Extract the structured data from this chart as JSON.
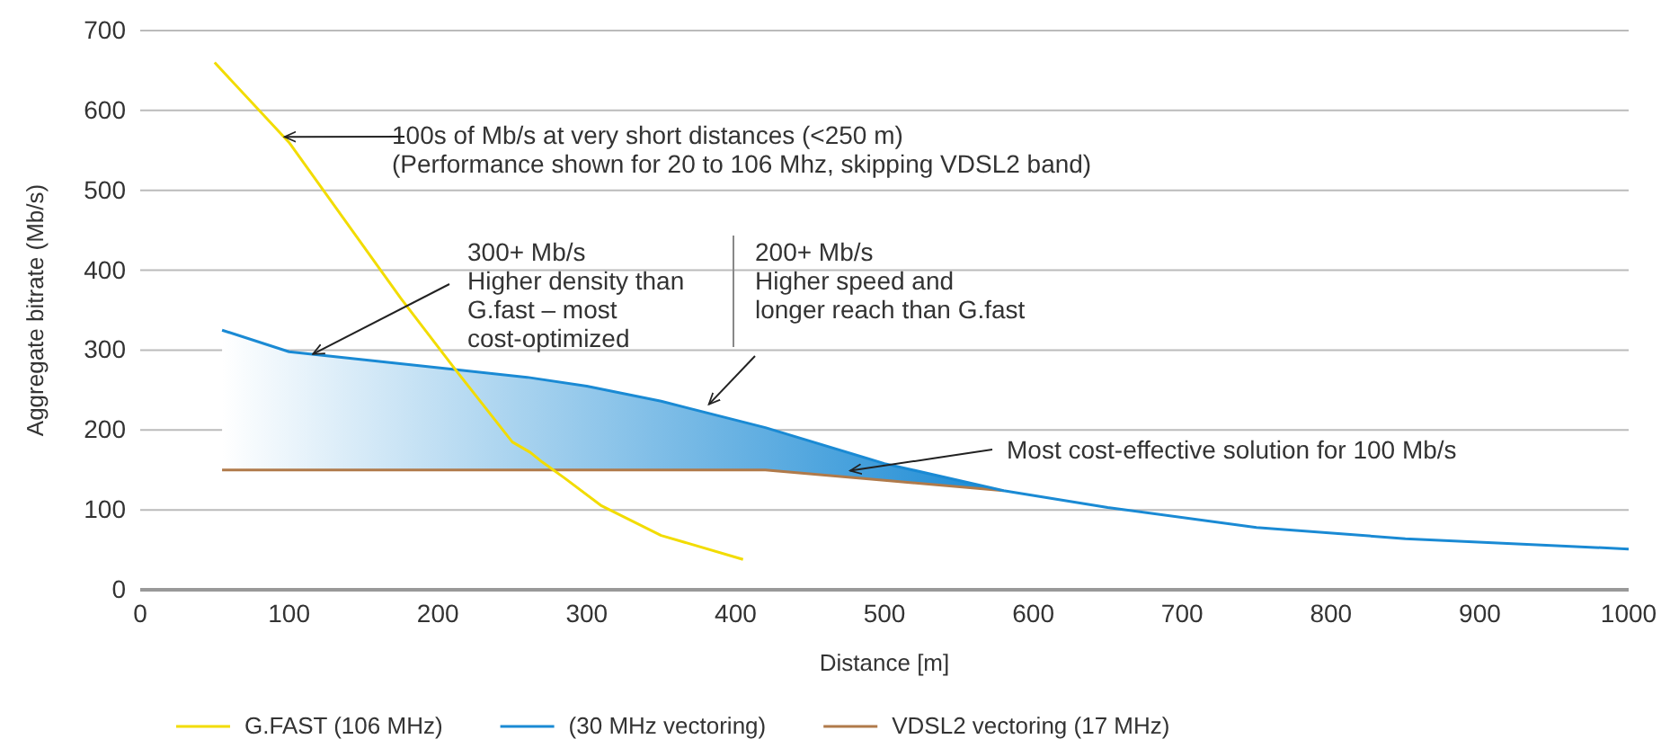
{
  "chart_data": {
    "type": "line",
    "xlabel": "Distance [m]",
    "ylabel": "Aggregate bitrate (Mb/s)",
    "xlim": [
      0,
      1000
    ],
    "xticks": [
      0,
      100,
      200,
      300,
      400,
      500,
      600,
      700,
      800,
      900,
      1000
    ],
    "ylim": [
      0,
      700
    ],
    "yticks": [
      0,
      100,
      200,
      300,
      400,
      500,
      600,
      700
    ],
    "grid": "y",
    "legend": "bottom",
    "marker": "none",
    "line_style": "solid",
    "series": [
      {
        "name": "G.FAST (106 MHz)",
        "color": "#f2dc00",
        "x": [
          50,
          100,
          175,
          212,
          250,
          262,
          270,
          285,
          310,
          350,
          405
        ],
        "values": [
          660,
          560,
          365,
          275,
          185,
          172,
          160,
          140,
          105,
          68,
          38
        ]
      },
      {
        "name": "(30 MHz vectoring)",
        "color": "#1a8ad4",
        "x": [
          55,
          100,
          210,
          260,
          300,
          350,
          420,
          500,
          580,
          650,
          750,
          850,
          1000
        ],
        "values": [
          325,
          298,
          276,
          266,
          255,
          236,
          203,
          158,
          124,
          103,
          78,
          64,
          51
        ]
      },
      {
        "name": "VDSL2 vectoring (17 MHz)",
        "color": "#b07a4a",
        "x": [
          55,
          420,
          500,
          580
        ],
        "values": [
          150,
          150,
          137,
          124
        ]
      }
    ],
    "annotations": [
      {
        "text": "100s of Mb/s at very short distances (<250 m)\n(Performance shown for 20 to 106 Mhz, skipping VDSL2 band)",
        "x": 97,
        "y": 567
      },
      {
        "text": "300+ Mb/s\nHigher density than\nG.fast – most\ncost-optimized",
        "x": 116,
        "y": 295
      },
      {
        "text": "200+ Mb/s\nHigher speed and\nlonger reach than G.fast",
        "x": 382,
        "y": 232
      },
      {
        "text": "Most cost-effective solution for 100 Mb/s",
        "x": 477,
        "y": 149
      }
    ]
  }
}
